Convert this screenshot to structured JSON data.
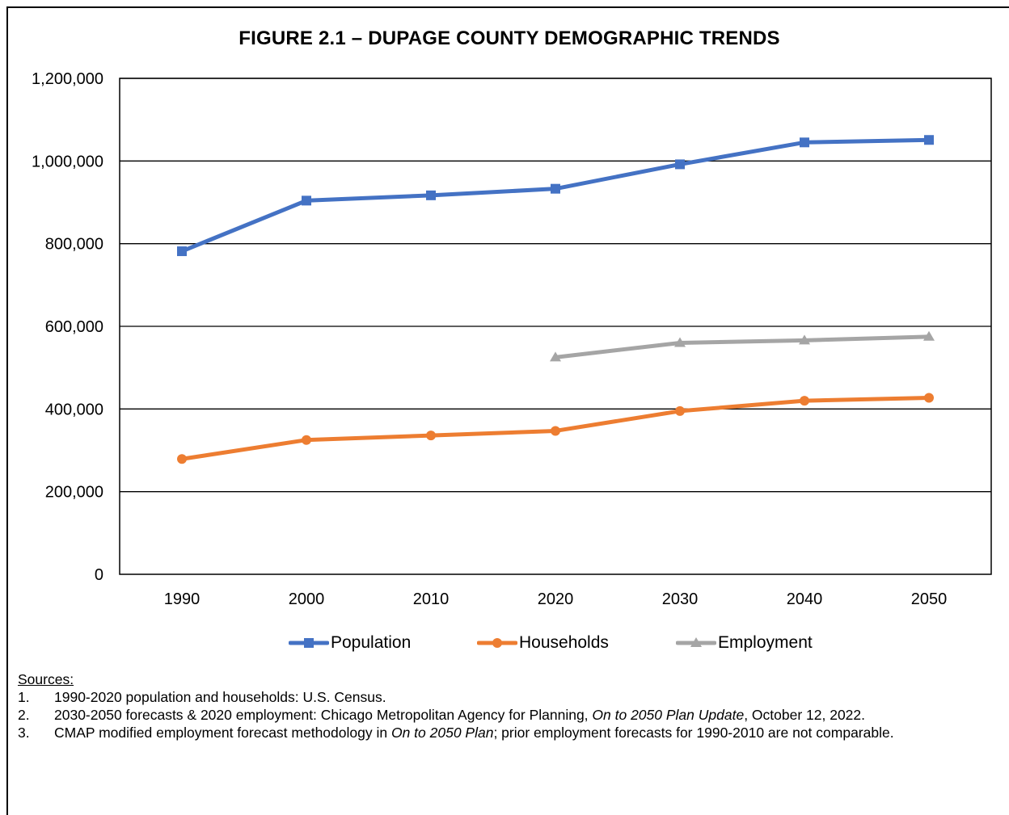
{
  "title": "FIGURE 2.1 – DUPAGE COUNTY DEMOGRAPHIC TRENDS",
  "chart_data": {
    "type": "line",
    "title": "FIGURE 2.1 – DUPAGE COUNTY DEMOGRAPHIC TRENDS",
    "x": [
      "1990",
      "2000",
      "2010",
      "2020",
      "2030",
      "2040",
      "2050"
    ],
    "ylim": [
      0,
      1200000
    ],
    "yticks": [
      "0",
      "200,000",
      "400,000",
      "600,000",
      "800,000",
      "1,000,000",
      "1,200,000"
    ],
    "ytick_values": [
      0,
      200000,
      400000,
      600000,
      800000,
      1000000,
      1200000
    ],
    "grid": true,
    "legend_position": "bottom",
    "series": [
      {
        "name": "Population",
        "color": "#4472C4",
        "marker": "square",
        "values": [
          781666,
          904161,
          916924,
          932877,
          992000,
          1045000,
          1051000
        ]
      },
      {
        "name": "Households",
        "color": "#ED7D31",
        "marker": "circle",
        "values": [
          279000,
          325000,
          336000,
          347000,
          395000,
          420000,
          427000
        ]
      },
      {
        "name": "Employment",
        "color": "#A5A5A5",
        "marker": "triangle",
        "values": [
          null,
          null,
          null,
          525000,
          560000,
          566000,
          575000
        ]
      }
    ]
  },
  "sources": {
    "heading": "Sources:",
    "notes": [
      {
        "num": "1.",
        "parts": [
          {
            "text": "1990-2020 population and households: U.S. Census.",
            "italic": false
          }
        ]
      },
      {
        "num": "2.",
        "parts": [
          {
            "text": "2030-2050 forecasts & 2020 employment:  Chicago Metropolitan Agency for Planning, ",
            "italic": false
          },
          {
            "text": "On to 2050 Plan Update",
            "italic": true
          },
          {
            "text": ", October 12, 2022.",
            "italic": false
          }
        ]
      },
      {
        "num": "3.",
        "parts": [
          {
            "text": "CMAP modified employment forecast methodology in ",
            "italic": false
          },
          {
            "text": "On to 2050 Plan",
            "italic": true
          },
          {
            "text": "; prior employment forecasts for 1990-2010 are not comparable.",
            "italic": false
          }
        ]
      }
    ]
  }
}
